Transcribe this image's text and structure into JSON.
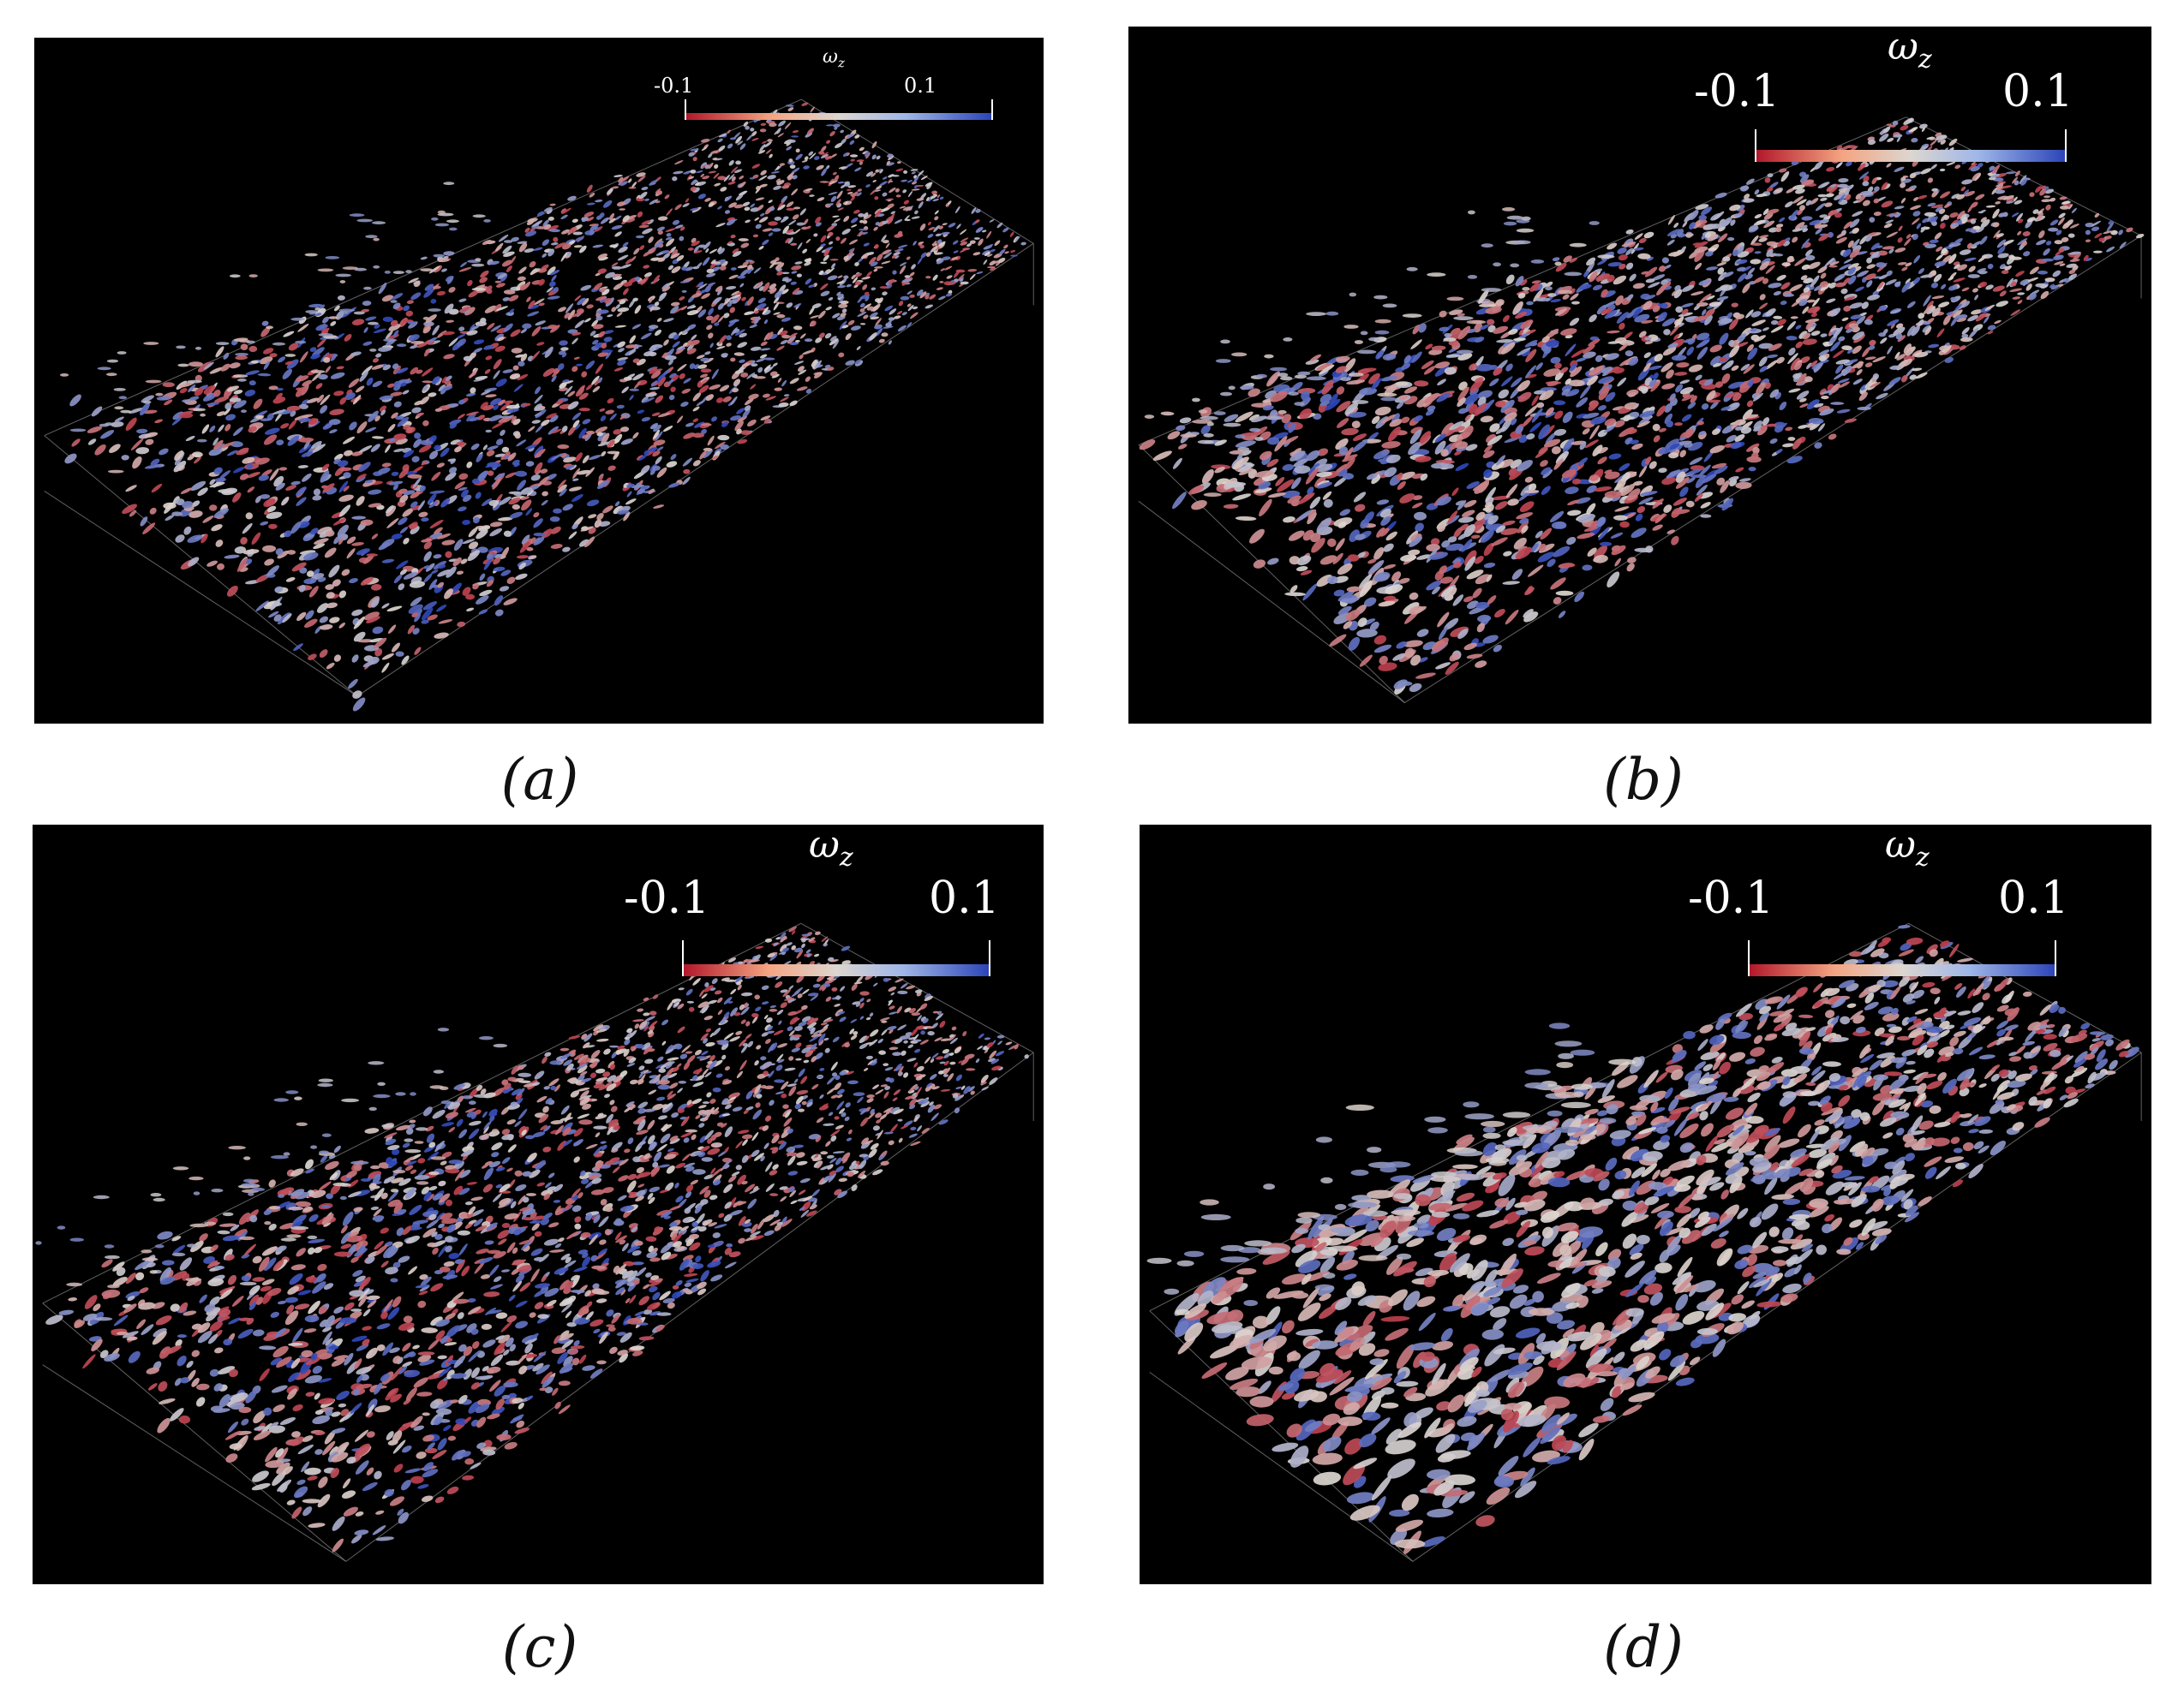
{
  "colors": {
    "background": "#000000",
    "negative": "#b2182b",
    "neutral": "#dcd6d0",
    "positive": "#2c45b8",
    "box_edge": "#8a8a8a"
  },
  "colorbar": {
    "variable": "ω",
    "subscript": "z",
    "min_label": "-0.1",
    "max_label": "0.1",
    "range": [
      -0.1,
      0.1
    ],
    "colormap": "diverging red-white-blue"
  },
  "panels": [
    {
      "id": "a",
      "caption": "(a)"
    },
    {
      "id": "b",
      "caption": "(b)"
    },
    {
      "id": "c",
      "caption": "(c)"
    },
    {
      "id": "d",
      "caption": "(d)"
    }
  ]
}
